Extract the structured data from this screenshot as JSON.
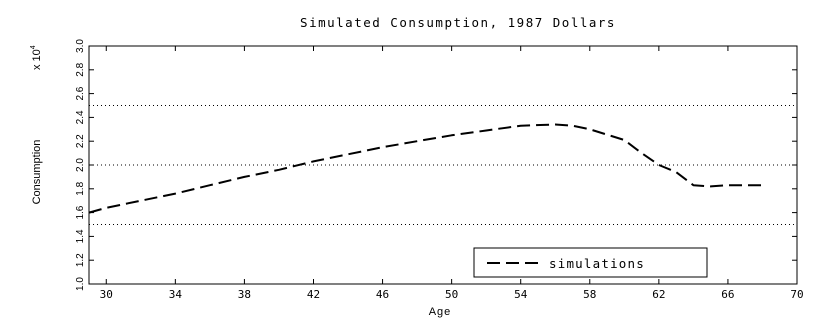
{
  "chart_data": {
    "type": "line",
    "title": "Simulated Consumption, 1987 Dollars",
    "xlabel": "Age",
    "ylabel": "Consumption",
    "y_multiplier_label": "x 10",
    "y_multiplier_exp": "4",
    "xlim": [
      29,
      70
    ],
    "ylim": [
      1.0,
      3.0
    ],
    "x_ticks": [
      30,
      34,
      38,
      42,
      46,
      50,
      54,
      58,
      62,
      66,
      70
    ],
    "y_ticks": [
      1.0,
      1.2,
      1.4,
      1.6,
      1.8,
      2.0,
      2.2,
      2.4,
      2.6,
      2.8,
      3.0
    ],
    "gridlines_y": [
      1.5,
      2.0,
      2.5
    ],
    "grid_style": "dotted",
    "legend_position": "bottom-right",
    "series": [
      {
        "name": "simulations",
        "style": "dashed",
        "x": [
          29,
          30,
          32,
          34,
          36,
          38,
          40,
          42,
          44,
          46,
          48,
          50,
          52,
          54,
          56,
          57,
          58,
          60,
          61,
          62,
          63,
          64,
          65,
          66,
          67,
          68
        ],
        "y": [
          1.6,
          1.64,
          1.7,
          1.76,
          1.83,
          1.9,
          1.96,
          2.03,
          2.09,
          2.15,
          2.2,
          2.25,
          2.29,
          2.33,
          2.34,
          2.33,
          2.3,
          2.21,
          2.1,
          2.0,
          1.94,
          1.83,
          1.82,
          1.83,
          1.83,
          1.83
        ]
      }
    ]
  }
}
